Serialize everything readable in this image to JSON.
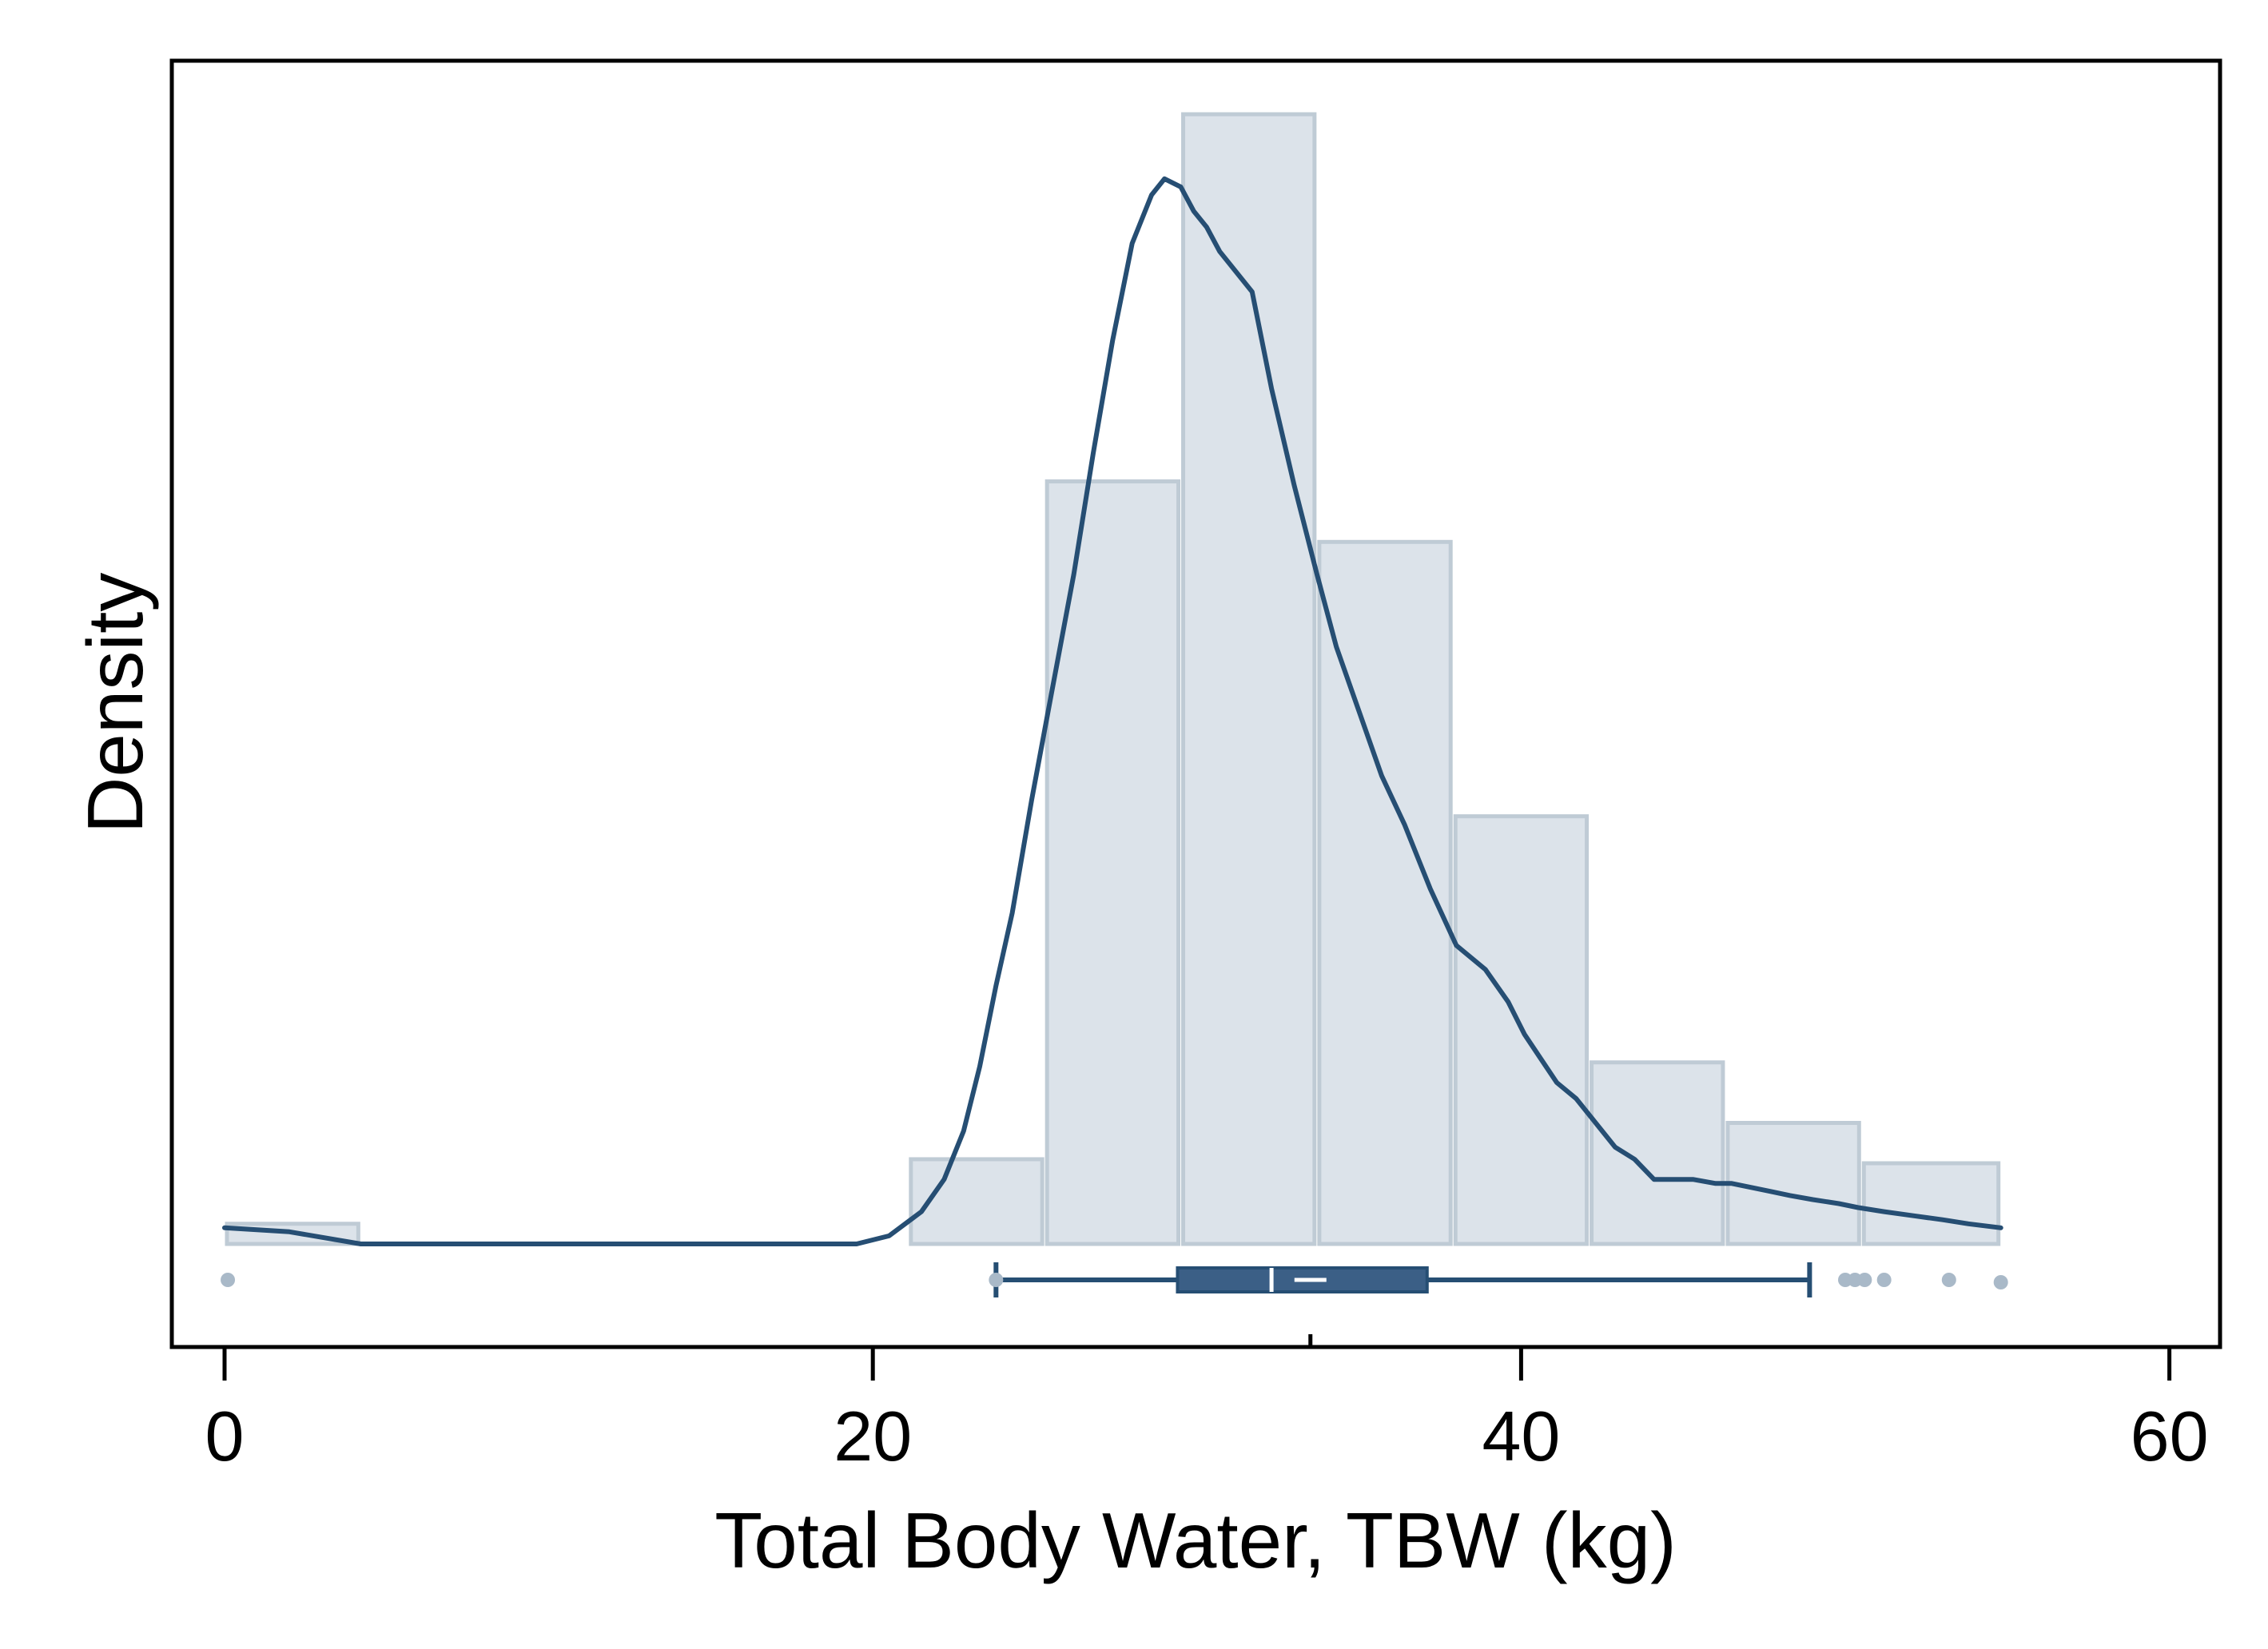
{
  "chart_data": {
    "type": "histogram",
    "xlabel": "Total Body Water, TBW (kg)",
    "ylabel": "Density",
    "xlim": [
      -0.8,
      61.5
    ],
    "x_ticks": [
      0,
      20,
      40,
      60
    ],
    "x_tick_labels": [
      "0",
      "20",
      "40",
      "60"
    ],
    "y_ticks_shown": false,
    "grid": false,
    "legend": "none",
    "histogram": {
      "bin_width": 4.21,
      "bins": [
        {
          "start": 0.0,
          "end": 4.2,
          "density": 0.0025
        },
        {
          "start": 4.2,
          "end": 8.4,
          "density": 0.0
        },
        {
          "start": 8.4,
          "end": 12.6,
          "density": 0.0
        },
        {
          "start": 12.6,
          "end": 16.8,
          "density": 0.0
        },
        {
          "start": 16.8,
          "end": 21.1,
          "density": 0.0
        },
        {
          "start": 21.1,
          "end": 25.3,
          "density": 0.0105
        },
        {
          "start": 25.3,
          "end": 29.5,
          "density": 0.0945
        },
        {
          "start": 29.5,
          "end": 33.7,
          "density": 0.14
        },
        {
          "start": 33.7,
          "end": 37.9,
          "density": 0.087
        },
        {
          "start": 37.9,
          "end": 42.1,
          "density": 0.053
        },
        {
          "start": 42.1,
          "end": 46.3,
          "density": 0.0225
        },
        {
          "start": 46.3,
          "end": 50.5,
          "density": 0.015
        },
        {
          "start": 50.5,
          "end": 54.8,
          "density": 0.01
        }
      ]
    },
    "kde": {
      "x": [
        0,
        2,
        4.2,
        8,
        12,
        16,
        19.5,
        20.5,
        21.5,
        22.2,
        22.8,
        23.3,
        23.8,
        24.3,
        24.9,
        25.5,
        26.2,
        26.8,
        27.4,
        28.0,
        28.6,
        29.0,
        29.5,
        29.9,
        30.3,
        30.7,
        31.1,
        31.7,
        32.3,
        33.0,
        33.7,
        34.3,
        35.0,
        35.7,
        36.4,
        37.2,
        38.0,
        38.9,
        39.6,
        40.1,
        40.6,
        41.1,
        41.7,
        42.3,
        42.9,
        43.5,
        44.1,
        44.7,
        45.3,
        46.0,
        46.5,
        47.1,
        47.7,
        48.3,
        49.0,
        49.8,
        50.4,
        51.2,
        52.1,
        53.0,
        53.8,
        54.8
      ],
      "y": [
        0.002,
        0.0015,
        0.0,
        0.0,
        0.0,
        0.0,
        0.0,
        0.001,
        0.004,
        0.008,
        0.014,
        0.022,
        0.032,
        0.041,
        0.055,
        0.068,
        0.083,
        0.098,
        0.112,
        0.124,
        0.13,
        0.132,
        0.131,
        0.128,
        0.126,
        0.123,
        0.121,
        0.118,
        0.106,
        0.094,
        0.083,
        0.074,
        0.066,
        0.058,
        0.052,
        0.044,
        0.037,
        0.034,
        0.03,
        0.026,
        0.023,
        0.02,
        0.018,
        0.015,
        0.012,
        0.0105,
        0.008,
        0.008,
        0.008,
        0.0075,
        0.0075,
        0.007,
        0.0065,
        0.006,
        0.0055,
        0.005,
        0.0045,
        0.004,
        0.0035,
        0.003,
        0.0025,
        0.002
      ]
    },
    "boxplot": {
      "whisker_low": 23.8,
      "q1": 29.4,
      "median": 32.3,
      "mean": 33.5,
      "q3": 37.1,
      "whisker_high": 48.9,
      "outliers": [
        0.1,
        23.8,
        50.0,
        50.3,
        50.6,
        51.2,
        53.2,
        54.8
      ]
    }
  }
}
